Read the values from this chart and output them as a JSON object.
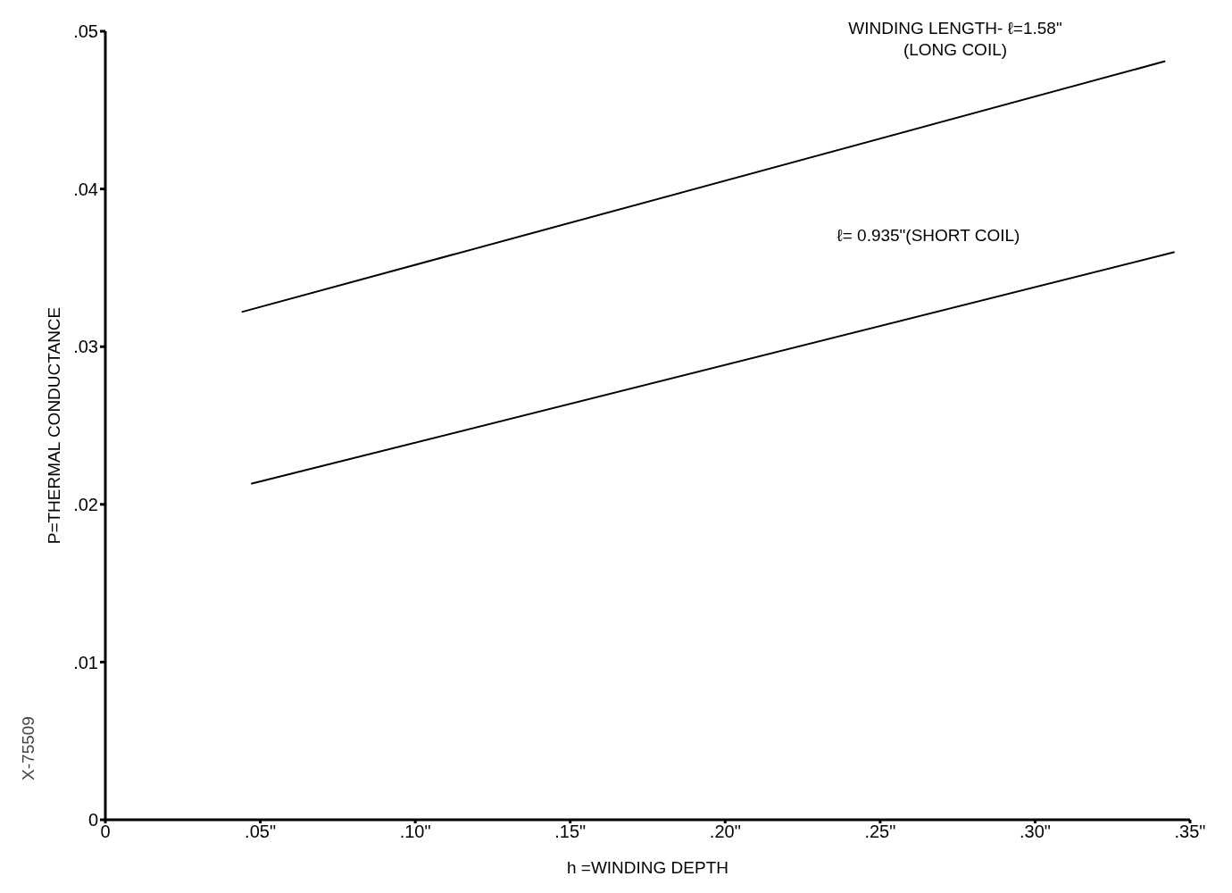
{
  "chart_data": {
    "type": "line",
    "xlabel": "h =WINDING DEPTH",
    "ylabel": "P=THERMAL CONDUCTANCE",
    "xlim": [
      0,
      0.35
    ],
    "xticks": [
      0,
      {
        "value": 0.05,
        "label": ".05\""
      },
      {
        "value": 0.1,
        "label": ".10\""
      },
      {
        "value": 0.15,
        "label": ".15\""
      },
      {
        "value": 0.2,
        "label": ".20\""
      },
      {
        "value": 0.25,
        "label": ".25\""
      },
      {
        "value": 0.3,
        "label": ".30\""
      },
      {
        "value": 0.35,
        "label": ".35\""
      }
    ],
    "ylim": [
      0,
      0.05
    ],
    "yticks": [
      0,
      {
        "value": 0.01,
        "label": ".01"
      },
      {
        "value": 0.02,
        "label": ".02"
      },
      {
        "value": 0.03,
        "label": ".03"
      },
      {
        "value": 0.04,
        "label": ".04"
      },
      {
        "value": 0.05,
        "label": ".05"
      }
    ],
    "series": [
      {
        "color": "#000000",
        "x": [
          0.044,
          0.342
        ],
        "values": [
          0.0322,
          0.0481
        ]
      },
      {
        "color": "#000000",
        "x": [
          0.047,
          0.345
        ],
        "values": [
          0.0213,
          0.036
        ]
      }
    ],
    "annotations": [
      "WINDING LENGTH- ℓ=1.58\"\n(LONG COIL)",
      "ℓ= 0.935\"(SHORT COIL)",
      "X-75509"
    ],
    "grid": false,
    "legend": false,
    "marker": "none",
    "line_style": "solid"
  }
}
